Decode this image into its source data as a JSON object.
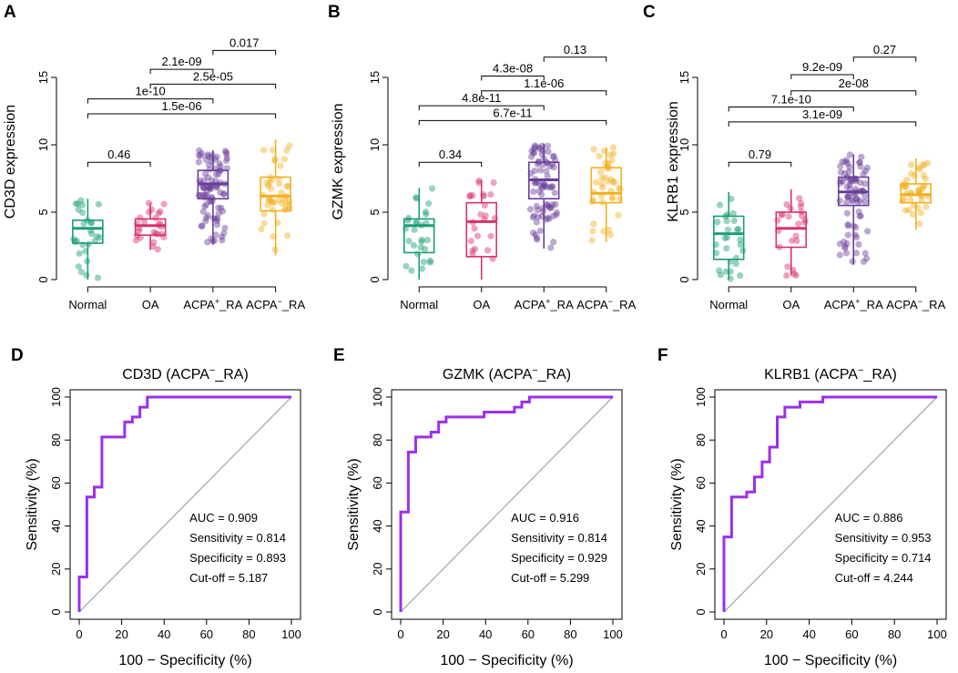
{
  "colors": {
    "Normal": "#1b9e77",
    "OA": "#d6336c",
    "ACPA+_RA": "#6a3d9a",
    "ACPA-_RA": "#f2b01e",
    "roc": "#9b30e8",
    "diagonal": "#b0b0b0"
  },
  "chart_data": [
    {
      "type": "box",
      "panel": "A",
      "ylabel": "CD3D expression",
      "categories": [
        {
          "key": "Normal",
          "base": "Normal",
          "sup": "",
          "tail": ""
        },
        {
          "key": "OA",
          "base": "OA",
          "sup": "",
          "tail": ""
        },
        {
          "key": "ACPA+_RA",
          "base": "ACPA",
          "sup": "+",
          "tail": "_RA"
        },
        {
          "key": "ACPA-_RA",
          "base": "ACPA",
          "sup": "−",
          "tail": "_RA"
        }
      ],
      "ylim": [
        0,
        17.5
      ],
      "yticks": [
        0,
        5,
        10,
        15
      ],
      "boxes": [
        {
          "q1": 2.7,
          "median": 3.8,
          "q3": 4.4,
          "wmin": 0.0,
          "wmax": 6.0
        },
        {
          "q1": 3.3,
          "median": 4.0,
          "q3": 4.5,
          "wmin": 2.2,
          "wmax": 5.7
        },
        {
          "q1": 6.0,
          "median": 7.1,
          "q3": 8.1,
          "wmin": 2.6,
          "wmax": 9.6
        },
        {
          "q1": 5.1,
          "median": 6.2,
          "q3": 7.6,
          "wmin": 1.8,
          "wmax": 10.4
        }
      ],
      "npoints": [
        28,
        26,
        90,
        45
      ],
      "comparisons": [
        {
          "i": 0,
          "j": 1,
          "y": 8.7,
          "label": "0.46"
        },
        {
          "i": 0,
          "j": 3,
          "y": 12.3,
          "label": "1.5e-06"
        },
        {
          "i": 0,
          "j": 2,
          "y": 13.4,
          "label": "1e-10"
        },
        {
          "i": 1,
          "j": 3,
          "y": 14.5,
          "label": "2.5e-05"
        },
        {
          "i": 1,
          "j": 2,
          "y": 15.6,
          "label": "2.1e-09"
        },
        {
          "i": 2,
          "j": 3,
          "y": 17.0,
          "label": "0.017"
        }
      ]
    },
    {
      "type": "box",
      "panel": "B",
      "ylabel": "GZMK expression",
      "categories": [
        {
          "key": "Normal",
          "base": "Normal",
          "sup": "",
          "tail": ""
        },
        {
          "key": "OA",
          "base": "OA",
          "sup": "",
          "tail": ""
        },
        {
          "key": "ACPA+_RA",
          "base": "ACPA",
          "sup": "+",
          "tail": "_RA"
        },
        {
          "key": "ACPA-_RA",
          "base": "ACPA",
          "sup": "−",
          "tail": "_RA"
        }
      ],
      "ylim": [
        0,
        17.5
      ],
      "yticks": [
        0,
        5,
        10,
        15
      ],
      "boxes": [
        {
          "q1": 2.0,
          "median": 4.0,
          "q3": 4.5,
          "wmin": 0.0,
          "wmax": 6.8
        },
        {
          "q1": 1.7,
          "median": 4.3,
          "q3": 5.7,
          "wmin": 0.0,
          "wmax": 7.4
        },
        {
          "q1": 6.0,
          "median": 7.4,
          "q3": 8.7,
          "wmin": 2.3,
          "wmax": 10.1
        },
        {
          "q1": 5.7,
          "median": 6.4,
          "q3": 8.3,
          "wmin": 2.8,
          "wmax": 9.8
        }
      ],
      "npoints": [
        28,
        24,
        80,
        40
      ],
      "comparisons": [
        {
          "i": 0,
          "j": 1,
          "y": 8.7,
          "label": "0.34"
        },
        {
          "i": 0,
          "j": 3,
          "y": 11.8,
          "label": "6.7e-11"
        },
        {
          "i": 0,
          "j": 2,
          "y": 12.9,
          "label": "4.8e-11"
        },
        {
          "i": 1,
          "j": 3,
          "y": 14.0,
          "label": "1.1e-06"
        },
        {
          "i": 1,
          "j": 2,
          "y": 15.1,
          "label": "4.3e-08"
        },
        {
          "i": 2,
          "j": 3,
          "y": 16.5,
          "label": "0.13"
        }
      ]
    },
    {
      "type": "box",
      "panel": "C",
      "ylabel": "KLRB1 expression",
      "categories": [
        {
          "key": "Normal",
          "base": "Normal",
          "sup": "",
          "tail": ""
        },
        {
          "key": "OA",
          "base": "OA",
          "sup": "",
          "tail": ""
        },
        {
          "key": "ACPA+_RA",
          "base": "ACPA",
          "sup": "+",
          "tail": "_RA"
        },
        {
          "key": "ACPA-_RA",
          "base": "ACPA",
          "sup": "−",
          "tail": "_RA"
        }
      ],
      "ylim": [
        0,
        17.5
      ],
      "yticks": [
        0,
        5,
        10,
        15
      ],
      "boxes": [
        {
          "q1": 1.5,
          "median": 3.4,
          "q3": 4.7,
          "wmin": 0.0,
          "wmax": 6.5
        },
        {
          "q1": 2.4,
          "median": 3.8,
          "q3": 5.0,
          "wmin": 0.3,
          "wmax": 6.7
        },
        {
          "q1": 5.5,
          "median": 6.5,
          "q3": 7.6,
          "wmin": 1.1,
          "wmax": 9.3
        },
        {
          "q1": 5.7,
          "median": 6.3,
          "q3": 7.1,
          "wmin": 3.7,
          "wmax": 9.0
        }
      ],
      "npoints": [
        28,
        24,
        80,
        40
      ],
      "comparisons": [
        {
          "i": 0,
          "j": 1,
          "y": 8.7,
          "label": "0.79"
        },
        {
          "i": 0,
          "j": 3,
          "y": 11.7,
          "label": "3.1e-09"
        },
        {
          "i": 0,
          "j": 2,
          "y": 12.8,
          "label": "7.1e-10"
        },
        {
          "i": 1,
          "j": 3,
          "y": 14.0,
          "label": "2e-08"
        },
        {
          "i": 1,
          "j": 2,
          "y": 15.2,
          "label": "9.2e-09"
        },
        {
          "i": 2,
          "j": 3,
          "y": 16.5,
          "label": "0.27"
        }
      ]
    },
    {
      "type": "line",
      "subtype": "roc",
      "panel": "D",
      "title": "CD3D (ACPA",
      "title_sup": "−",
      "title_tail": "_RA)",
      "xlabel": "100 − Specificity (%)",
      "ylabel": "Sensitivity (%)",
      "xlim": [
        0,
        100
      ],
      "ylim": [
        0,
        100
      ],
      "ticks": [
        0,
        20,
        40,
        60,
        80,
        100
      ],
      "stats": [
        "AUC = 0.909",
        "Sensitivity = 0.814",
        "Specificity = 0.893",
        "Cut-off = 5.187"
      ],
      "x": [
        0,
        0,
        3.6,
        3.6,
        7.1,
        7.1,
        10.7,
        10.7,
        14.3,
        17.9,
        21.4,
        21.4,
        25.0,
        25.0,
        28.6,
        28.6,
        32.1,
        32.1,
        100
      ],
      "y": [
        0,
        16.3,
        16.3,
        53.5,
        53.5,
        58.1,
        58.1,
        81.4,
        81.4,
        81.4,
        81.4,
        88.4,
        88.4,
        90.7,
        90.7,
        95.3,
        95.3,
        100,
        100
      ]
    },
    {
      "type": "line",
      "subtype": "roc",
      "panel": "E",
      "title": "GZMK (ACPA",
      "title_sup": "−",
      "title_tail": "_RA)",
      "xlabel": "100 − Specificity (%)",
      "ylabel": "Sensitivity (%)",
      "xlim": [
        0,
        100
      ],
      "ylim": [
        0,
        100
      ],
      "ticks": [
        0,
        20,
        40,
        60,
        80,
        100
      ],
      "stats": [
        "AUC = 0.916",
        "Sensitivity = 0.814",
        "Specificity = 0.929",
        "Cut-off = 5.299"
      ],
      "x": [
        0,
        0,
        3.6,
        3.6,
        7.1,
        7.1,
        14.3,
        14.3,
        17.9,
        17.9,
        21.4,
        21.4,
        39.3,
        39.3,
        53.6,
        53.6,
        57.1,
        57.1,
        60.7,
        60.7,
        67.9,
        67.9,
        100
      ],
      "y": [
        0,
        46.5,
        46.5,
        74.4,
        74.4,
        81.4,
        81.4,
        83.7,
        83.7,
        88.4,
        88.4,
        90.7,
        90.7,
        93.0,
        93.0,
        95.3,
        95.3,
        97.7,
        97.7,
        100,
        100,
        100,
        100
      ]
    },
    {
      "type": "line",
      "subtype": "roc",
      "panel": "F",
      "title": "KLRB1 (ACPA",
      "title_sup": "−",
      "title_tail": "_RA)",
      "xlabel": "100 − Specificity (%)",
      "ylabel": "Sensitivity (%)",
      "xlim": [
        0,
        100
      ],
      "ylim": [
        0,
        100
      ],
      "ticks": [
        0,
        20,
        40,
        60,
        80,
        100
      ],
      "stats": [
        "AUC = 0.886",
        "Sensitivity = 0.953",
        "Specificity = 0.714",
        "Cut-off = 4.244"
      ],
      "x": [
        0,
        0,
        3.6,
        3.6,
        10.7,
        10.7,
        14.3,
        14.3,
        17.9,
        17.9,
        21.4,
        21.4,
        25.0,
        25.0,
        28.6,
        28.6,
        35.7,
        35.7,
        46.4,
        46.4,
        100
      ],
      "y": [
        0,
        34.9,
        34.9,
        53.5,
        53.5,
        55.8,
        55.8,
        62.8,
        62.8,
        69.8,
        69.8,
        76.7,
        76.7,
        90.7,
        90.7,
        95.3,
        95.3,
        97.7,
        97.7,
        100,
        100
      ]
    }
  ]
}
